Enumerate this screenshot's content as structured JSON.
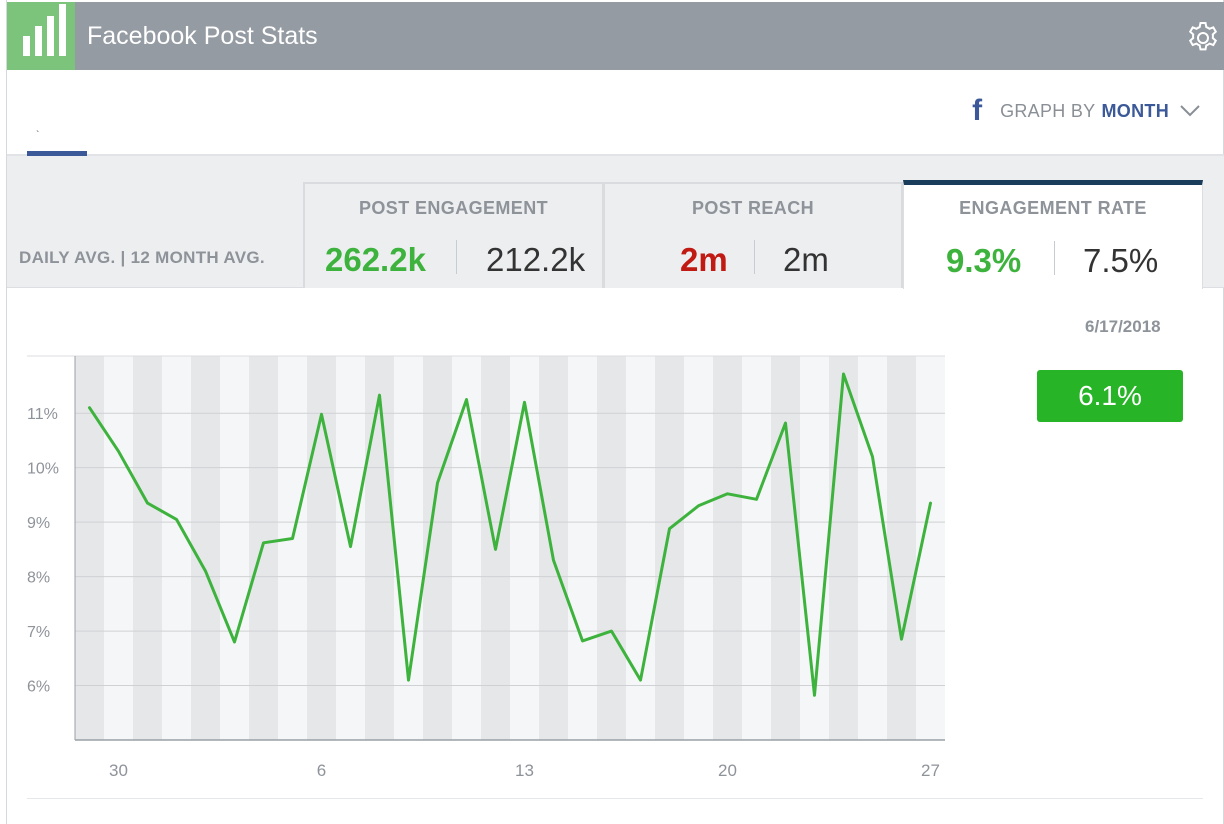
{
  "header": {
    "title": "Facebook Post Stats",
    "logo_icon": "bar-chart-icon",
    "settings_icon": "gear-icon"
  },
  "toolbar": {
    "graph_by_label": "GRAPH BY",
    "graph_by_value": "MONTH",
    "fb_glyph": "f",
    "tab_mark": "`"
  },
  "stats": {
    "avg_label": "DAILY AVG. | 12 MONTH AVG.",
    "metrics": [
      {
        "title": "POST ENGAGEMENT",
        "daily": "262.2k",
        "avg": "212.2k",
        "daily_color": "#3db33d"
      },
      {
        "title": "POST REACH",
        "daily": "2m",
        "avg": "2m",
        "daily_color": "#c01a12"
      },
      {
        "title": "ENGAGEMENT RATE",
        "daily": "9.3%",
        "avg": "7.5%",
        "daily_color": "#3db33d",
        "selected": true
      }
    ]
  },
  "hover": {
    "date": "6/17/2018",
    "value": "6.1%"
  },
  "chart_data": {
    "type": "line",
    "x": [
      29,
      30,
      31,
      1,
      2,
      3,
      4,
      5,
      6,
      7,
      8,
      9,
      10,
      11,
      12,
      13,
      14,
      15,
      16,
      17,
      18,
      19,
      20,
      21,
      22,
      23,
      24,
      25,
      26,
      27
    ],
    "xticks": [
      30,
      6,
      13,
      20,
      27
    ],
    "ytick_labels": [
      "11%",
      "10%",
      "9%",
      "8%",
      "7%",
      "6%"
    ],
    "yticks": [
      11,
      10,
      9,
      8,
      7,
      6
    ],
    "ylim": [
      5.0,
      12.05
    ],
    "values": [
      11.1,
      10.3,
      9.35,
      9.05,
      8.1,
      6.8,
      8.62,
      8.7,
      10.98,
      8.55,
      11.33,
      6.1,
      9.72,
      11.25,
      8.5,
      11.2,
      8.3,
      6.82,
      7.0,
      6.1,
      8.88,
      9.3,
      9.52,
      9.42,
      10.82,
      5.82,
      11.72,
      10.2,
      6.85,
      9.35
    ],
    "color": "#3db33d",
    "grid": true
  }
}
